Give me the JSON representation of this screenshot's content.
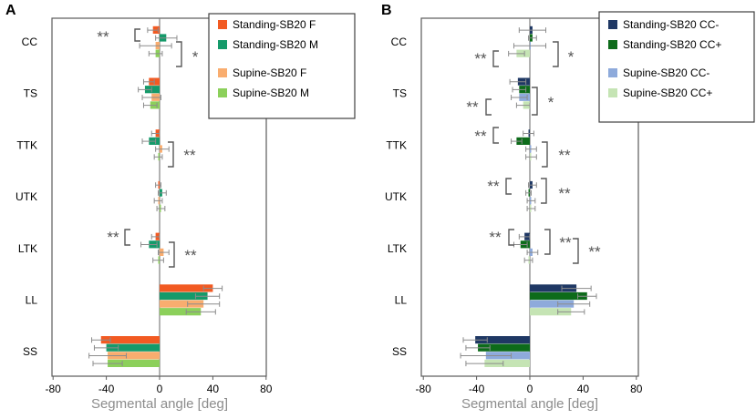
{
  "chart_data": [
    {
      "type": "bar",
      "orientation": "horizontal",
      "panel_label": "A",
      "categories": [
        "CC",
        "TS",
        "TTK",
        "UTK",
        "LTK",
        "LL",
        "SS"
      ],
      "xlim": [
        -80,
        80
      ],
      "xticks": [
        "-80",
        "-40",
        "0",
        "40",
        "80"
      ],
      "xlabel": "Segmental angle [deg]",
      "series": [
        {
          "name": "Standing-SB20 F",
          "color": "#f25a22",
          "values": [
            -5,
            -8,
            -3,
            -1,
            -3,
            40,
            -44
          ],
          "errors": [
            4,
            4,
            3,
            2,
            3,
            7,
            7
          ]
        },
        {
          "name": "Standing-SB20 M",
          "color": "#159a6a",
          "values": [
            5,
            -11,
            -8,
            2,
            -8,
            36,
            -40
          ],
          "errors": [
            8,
            5,
            5,
            3,
            6,
            9,
            9
          ]
        },
        {
          "name": "Supine-SB20 F",
          "color": "#f9ad6f",
          "values": [
            -3,
            -6,
            2,
            -1,
            3,
            33,
            -39
          ],
          "errors": [
            12,
            7,
            5,
            3,
            4,
            12,
            14
          ]
        },
        {
          "name": "Supine-SB20 M",
          "color": "#8cd05b",
          "values": [
            -3,
            -7,
            -1,
            1,
            -1,
            31,
            -39
          ],
          "errors": [
            5,
            5,
            3,
            3,
            4,
            11,
            11
          ]
        }
      ],
      "annotations": [
        {
          "text": "**",
          "between": [
            "Standing-SB20 F",
            "Standing-SB20 M"
          ],
          "category": "CC"
        },
        {
          "text": "*",
          "between": [
            "Standing-SB20 M",
            "Supine-SB20 M"
          ],
          "category": "CC"
        },
        {
          "text": "**",
          "between": [
            "Standing-SB20 M",
            "Supine-SB20 M"
          ],
          "category": "TTK"
        },
        {
          "text": "**",
          "between": [
            "Standing-SB20 F",
            "Standing-SB20 M"
          ],
          "category": "LTK"
        },
        {
          "text": "**",
          "between": [
            "Standing-SB20 M",
            "Supine-SB20 M"
          ],
          "category": "LTK"
        }
      ],
      "legend": "top-right",
      "grid": false
    },
    {
      "type": "bar",
      "orientation": "horizontal",
      "panel_label": "B",
      "categories": [
        "CC",
        "TS",
        "TTK",
        "UTK",
        "LTK",
        "LL",
        "SS"
      ],
      "xlim": [
        -80,
        80
      ],
      "xticks": [
        "-80",
        "-40",
        "0",
        "40",
        "80"
      ],
      "xlabel": "Segmental angle [deg]",
      "series": [
        {
          "name": "Standing-SB20 CC-",
          "color": "#1f3864",
          "values": [
            2,
            -9,
            -1,
            2,
            -4,
            35,
            -41
          ],
          "errors": [
            10,
            6,
            4,
            3,
            4,
            11,
            9
          ]
        },
        {
          "name": "Standing-SB20 CC+",
          "color": "#0d6b1a",
          "values": [
            2,
            -8,
            -10,
            -1,
            -7,
            43,
            -39
          ],
          "errors": [
            3,
            5,
            4,
            2,
            5,
            7,
            9
          ]
        },
        {
          "name": "Supine-SB20 CC-",
          "color": "#8eaadb",
          "values": [
            0,
            -8,
            1,
            1,
            2,
            33,
            -33
          ],
          "errors": [
            12,
            6,
            4,
            3,
            4,
            12,
            19
          ]
        },
        {
          "name": "Supine-SB20 CC+",
          "color": "#c5e4b4",
          "values": [
            -10,
            -5,
            1,
            1,
            -1,
            31,
            -34
          ],
          "errors": [
            6,
            5,
            4,
            3,
            3,
            10,
            14
          ]
        }
      ],
      "annotations": [
        {
          "text": "**",
          "between": [
            "Standing-SB20 CC+",
            "Supine-SB20 CC+"
          ],
          "category": "CC"
        },
        {
          "text": "*",
          "between": [
            "Standing-SB20 CC-",
            "Supine-SB20 CC-"
          ],
          "category": "CC"
        },
        {
          "text": "**",
          "between": [
            "Standing-SB20 CC-",
            "Supine-SB20 CC-"
          ],
          "category": "TS"
        },
        {
          "text": "*",
          "between": [
            "Standing-SB20 CC-",
            "Supine-SB20 CC+"
          ],
          "category": "TS"
        },
        {
          "text": "**",
          "between": [
            "Standing-SB20 CC-",
            "Standing-SB20 CC+"
          ],
          "category": "TTK"
        },
        {
          "text": "**",
          "between": [
            "Standing-SB20 CC+",
            "Supine-SB20 CC+"
          ],
          "category": "TTK"
        },
        {
          "text": "**",
          "between": [
            "Standing-SB20 CC-",
            "Standing-SB20 CC+"
          ],
          "category": "UTK"
        },
        {
          "text": "**",
          "between": [
            "Standing-SB20 CC+",
            "Supine-SB20 CC+"
          ],
          "category": "UTK"
        },
        {
          "text": "**",
          "between": [
            "Standing-SB20 CC-",
            "Standing-SB20 CC+"
          ],
          "category": "LTK"
        },
        {
          "text": "**",
          "between": [
            "Standing-SB20 CC+",
            "Supine-SB20 CC-"
          ],
          "category": "LTK"
        },
        {
          "text": "**",
          "between": [
            "Standing-SB20 CC+",
            "Supine-SB20 CC+"
          ],
          "category": "LTK"
        }
      ],
      "legend": "top-right",
      "grid": false
    }
  ]
}
